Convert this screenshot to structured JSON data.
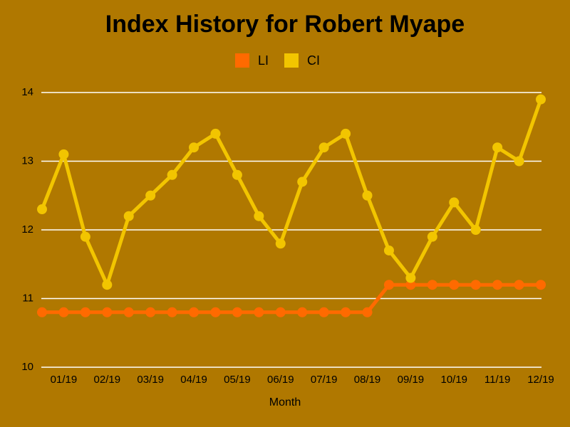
{
  "chart_data": {
    "type": "line",
    "title": "Index History for Robert Myape",
    "x_label": "Month",
    "categories": [
      null,
      "01/19",
      null,
      "02/19",
      null,
      "03/19",
      null,
      "04/19",
      null,
      "05/19",
      null,
      "06/19",
      null,
      "07/19",
      null,
      "08/19",
      null,
      "09/19",
      null,
      "10/19",
      null,
      "11/19",
      null,
      "12/19"
    ],
    "series": [
      {
        "name": "LI",
        "color": "#ff6a00",
        "values": [
          10.8,
          10.8,
          10.8,
          10.8,
          10.8,
          10.8,
          10.8,
          10.8,
          10.8,
          10.8,
          10.8,
          10.8,
          10.8,
          10.8,
          10.8,
          10.8,
          11.2,
          11.2,
          11.2,
          11.2,
          11.2,
          11.2,
          11.2,
          11.2
        ]
      },
      {
        "name": "CI",
        "color": "#f2c500",
        "values": [
          12.3,
          13.1,
          11.9,
          11.2,
          12.2,
          12.5,
          12.8,
          13.2,
          13.4,
          12.8,
          12.2,
          11.8,
          12.7,
          13.2,
          13.4,
          12.5,
          11.7,
          11.3,
          11.9,
          12.4,
          12.0,
          13.2,
          13.0,
          13.9
        ]
      }
    ],
    "ylim": [
      10,
      14
    ],
    "yticks": [
      10,
      11,
      12,
      13,
      14
    ],
    "grid": true,
    "legend": "top"
  }
}
